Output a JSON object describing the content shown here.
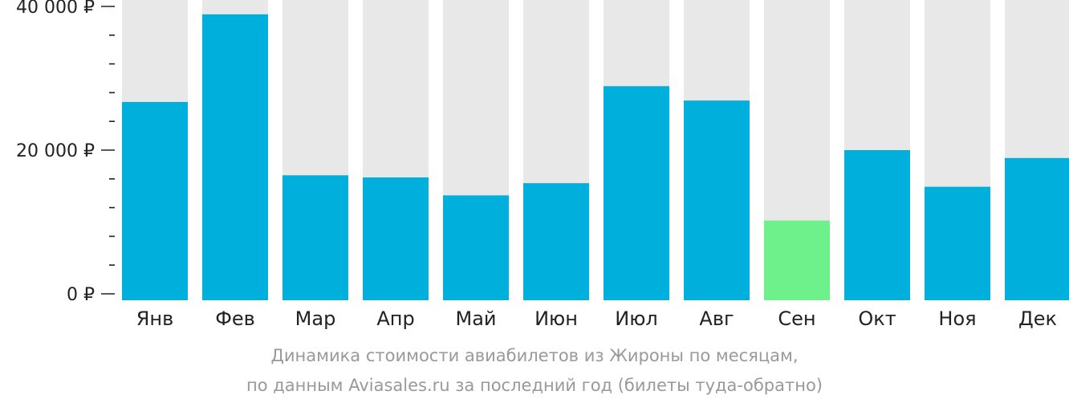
{
  "chart_data": {
    "type": "bar",
    "categories": [
      "Янв",
      "Фев",
      "Мар",
      "Апр",
      "Май",
      "Июн",
      "Июл",
      "Авг",
      "Сен",
      "Окт",
      "Ноя",
      "Дек"
    ],
    "values": [
      26700,
      38900,
      16500,
      16200,
      13700,
      15400,
      28900,
      26900,
      10200,
      20000,
      14900,
      18900
    ],
    "ylim": [
      0,
      40000
    ],
    "y_ticks": [
      {
        "value": 0,
        "label": "0 ₽"
      },
      {
        "value": 20000,
        "label": "20 000 ₽"
      },
      {
        "value": 40000,
        "label": "40 000 ₽"
      }
    ],
    "minor_tick_step": 4000,
    "highlight_index": 8,
    "title": "",
    "xlabel": "",
    "ylabel": "",
    "grid": false,
    "colors": {
      "bar": "#00afdc",
      "highlight": "#6ef08a",
      "background_bar": "#e8e8e8",
      "axis": "#222222"
    }
  },
  "caption": {
    "line1": "Динамика стоимости авиабилетов из Жироны по месяцам,",
    "line2": "по данным Aviasales.ru за последний год (билеты туда-обратно)"
  }
}
